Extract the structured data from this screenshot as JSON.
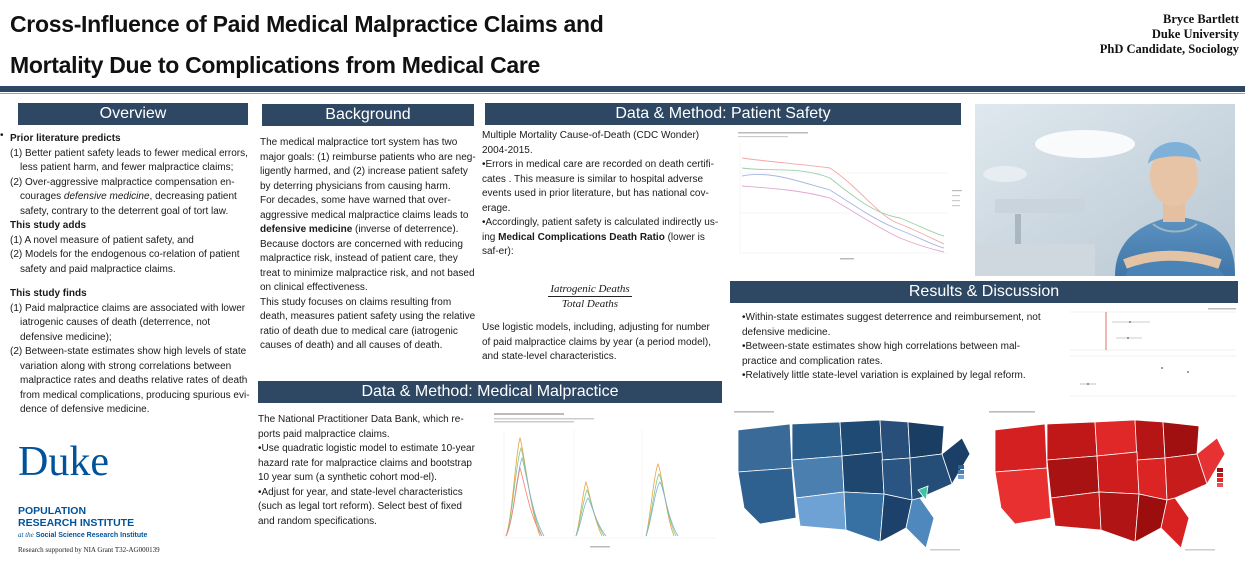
{
  "title": {
    "line1": "Cross-Influence of Paid Medical Malpractice Claims and",
    "line2": "Mortality Due to Complications from Medical Care"
  },
  "author": {
    "name": "Bryce Bartlett",
    "affiliation": "Duke University",
    "role": "PhD Candidate, Sociology"
  },
  "overview": {
    "header": "Overview",
    "prior_title": "Prior literature predicts",
    "prior_1": "(1) Better patient safety leads to fewer medical errors, less patient harm,  and fewer malpractice claims;",
    "prior_2a": "(2) Over-aggressive malpractice compensation en-courages ",
    "prior_2b": "defensive medicine",
    "prior_2c": ", decreasing patient safety, contrary to the deterrent goal of tort law.",
    "adds_title": "This study adds",
    "adds_1": "(1) A novel measure of patient safety, and",
    "adds_2": "(2) Models for the endogenous co-relation of patient safety and  paid malpractice claims.",
    "finds_title": "This study finds",
    "finds_1": "(1) Paid malpractice claims are associated with lower iatrogenic causes of death (deterrence, not defensive medicine);",
    "finds_2": "(2) Between-state estimates show high levels of state variation along with strong correlations between malpractice rates and deaths relative rates of death from medical complications,  producing spurious evi-dence of defensive medicine."
  },
  "logo": {
    "duke": "Duke",
    "pri_1": "POPULATION",
    "pri_2": "RESEARCH INSTITUTE",
    "pri_3a": "at the",
    "pri_3b": " Social Science Research Institute",
    "grant": "Research supported by NIA Grant T32-AG000139"
  },
  "background": {
    "header": "Background",
    "p1a": "The medical malpractice tort system has two major goals: (1) reimburse patients who are neg-ligently harmed, and (2) increase patient safety by deterring physicians from causing harm.",
    "p2a": "For decades, some have warned that over-aggressive medical malpractice claims leads to ",
    "p2b": "defensive medicine",
    "p2c": " (inverse of deterrence).",
    "p3": "Because doctors are concerned with reducing malpractice risk, instead of patient care,  they treat to minimize malpractice risk, and not based on clinical effectiveness.",
    "p4": "This study focuses on claims resulting from death, measures patient safety using the relative ratio of death due to medical care (iatrogenic causes of death) and all causes of death."
  },
  "patient_safety": {
    "header": "Data & Method: Patient Safety",
    "p1": "Multiple  Mortality Cause-of-Death (CDC Wonder) 2004-2015.",
    "b1": "•Errors in medical care are recorded  on death certifi-cates . This measure is similar to hospital adverse events used in prior literature, but  has national cov-erage.",
    "b2a": "•Accordingly, patient safety is calculated indirectly us-ing ",
    "b2b": "Medical Complications Death Ratio",
    "b2c": " (lower is saf-er):",
    "numerator": "Iatrogenic Deaths",
    "denominator": "Total Deaths",
    "p2": "Use logistic models, including, adjusting for number of paid malpractice claims by year (a period model), and state-level characteristics."
  },
  "malpractice": {
    "header": "Data & Method: Medical Malpractice",
    "p1": "The National Practitioner Data Bank, which re-ports paid malpractice claims.",
    "b1": "•Use quadratic logistic model to estimate 10-year hazard rate for malpractice claims and bootstrap 10 year sum (a  synthetic cohort mod-el).",
    "b2": "•Adjust for year, and state-level characteristics (such as legal tort reform). Select best of fixed and random specifications."
  },
  "results": {
    "header": "Results & Discussion",
    "b1": "•Within-state estimates suggest deterrence and reimbursement, not defensive medicine.",
    "b2": "•Between-state estimates show high correlations between mal-practice and complication rates.",
    "b3": "•Relatively little state-level variation is explained by legal reform."
  },
  "colors": {
    "header_bg": "#2e4763",
    "map_blue": "#2d5f8c",
    "map_red": "#c81e1e",
    "duke_blue": "#00539b"
  },
  "icons": {
    "photo": "doctor-photo"
  }
}
